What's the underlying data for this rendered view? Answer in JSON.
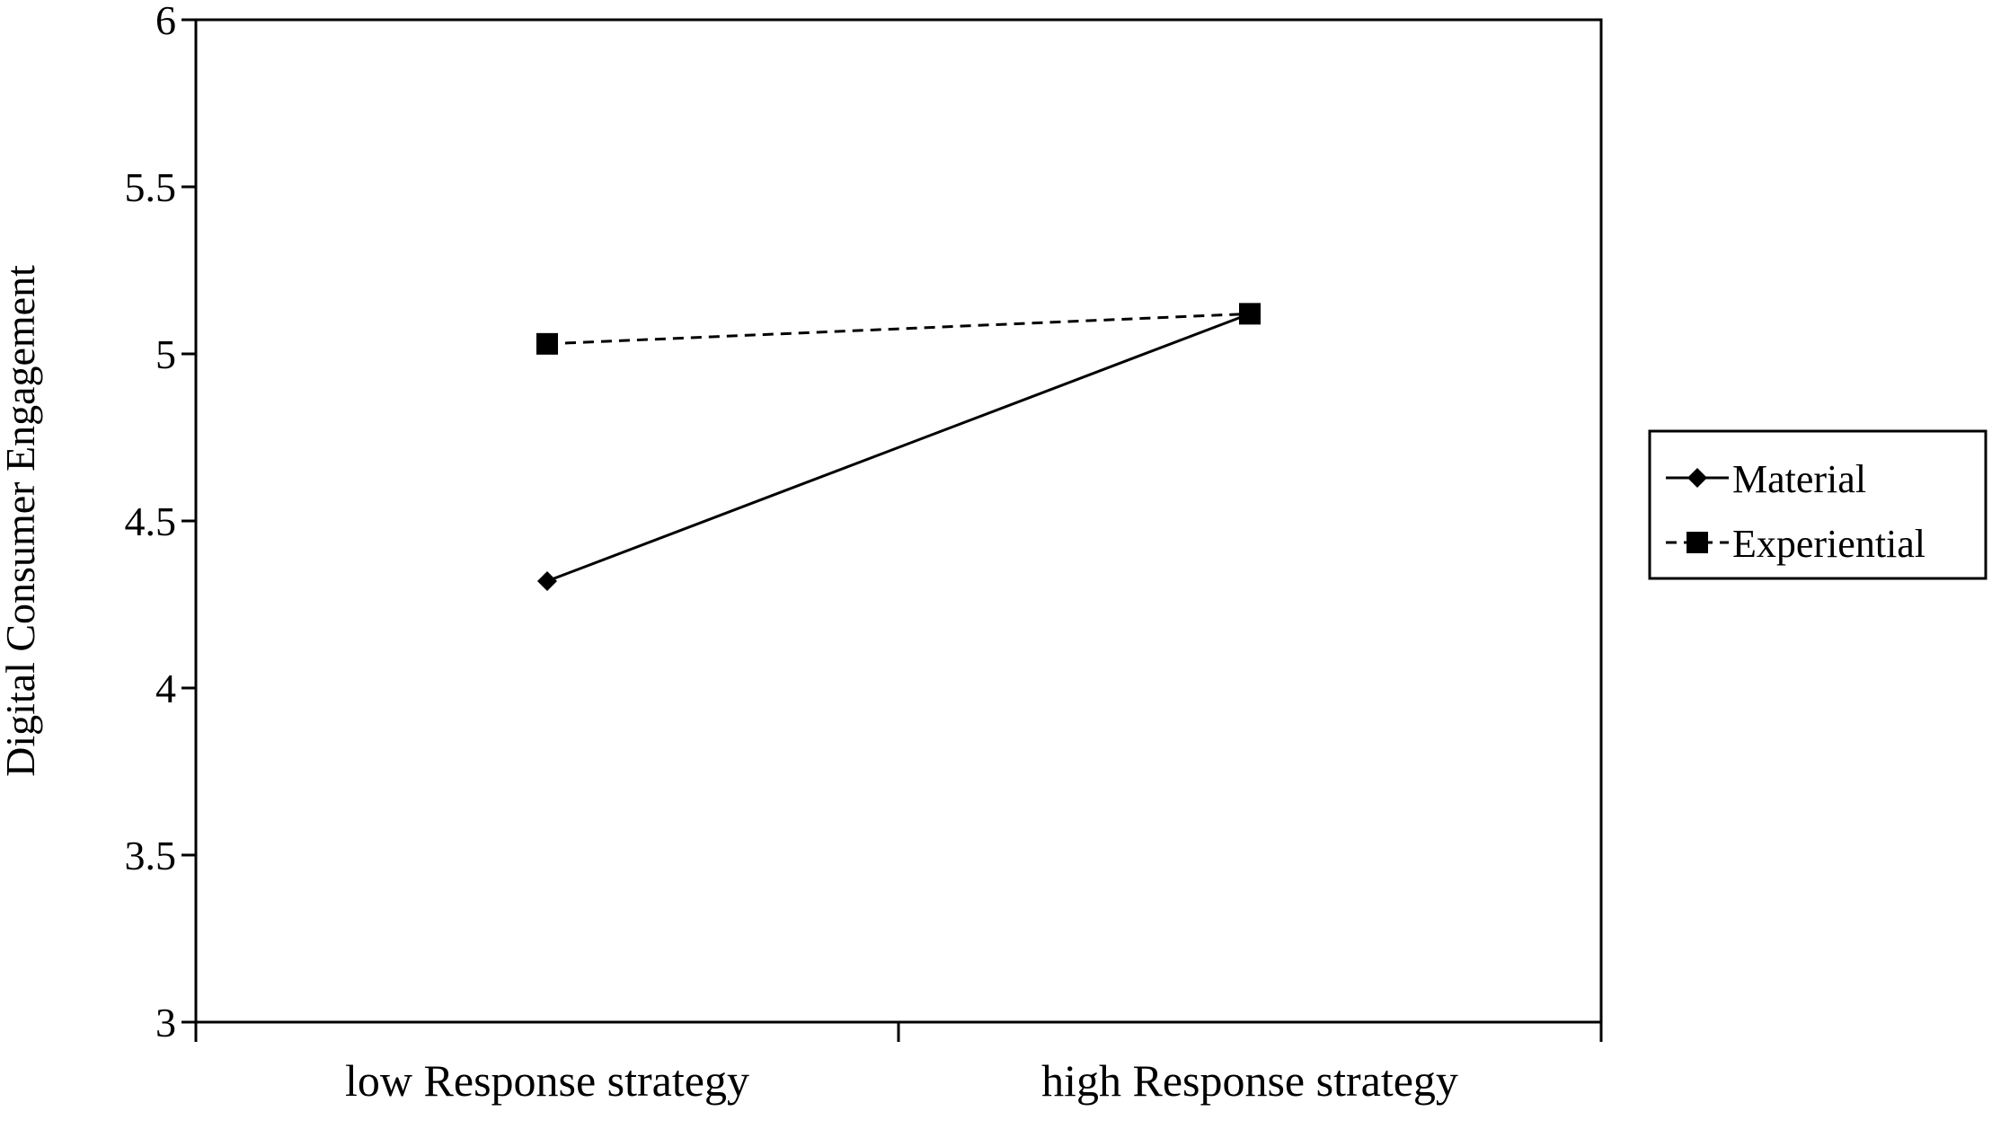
{
  "chart_data": {
    "type": "line",
    "title": "",
    "xlabel": "",
    "ylabel": "Digital Consumer Engagement",
    "categories": [
      "low Response strategy",
      "high Response strategy"
    ],
    "ylim": [
      3,
      6
    ],
    "yticks": [
      "3",
      "3.5",
      "4",
      "4.5",
      "5",
      "5.5",
      "6"
    ],
    "grid": false,
    "legend_position": "right",
    "series": [
      {
        "name": "Material",
        "values": [
          4.32,
          5.12
        ],
        "line_style": "solid",
        "marker": "diamond",
        "color": "#000000"
      },
      {
        "name": "Experiential",
        "values": [
          5.03,
          5.12
        ],
        "line_style": "dashed",
        "marker": "square",
        "color": "#000000"
      }
    ]
  }
}
